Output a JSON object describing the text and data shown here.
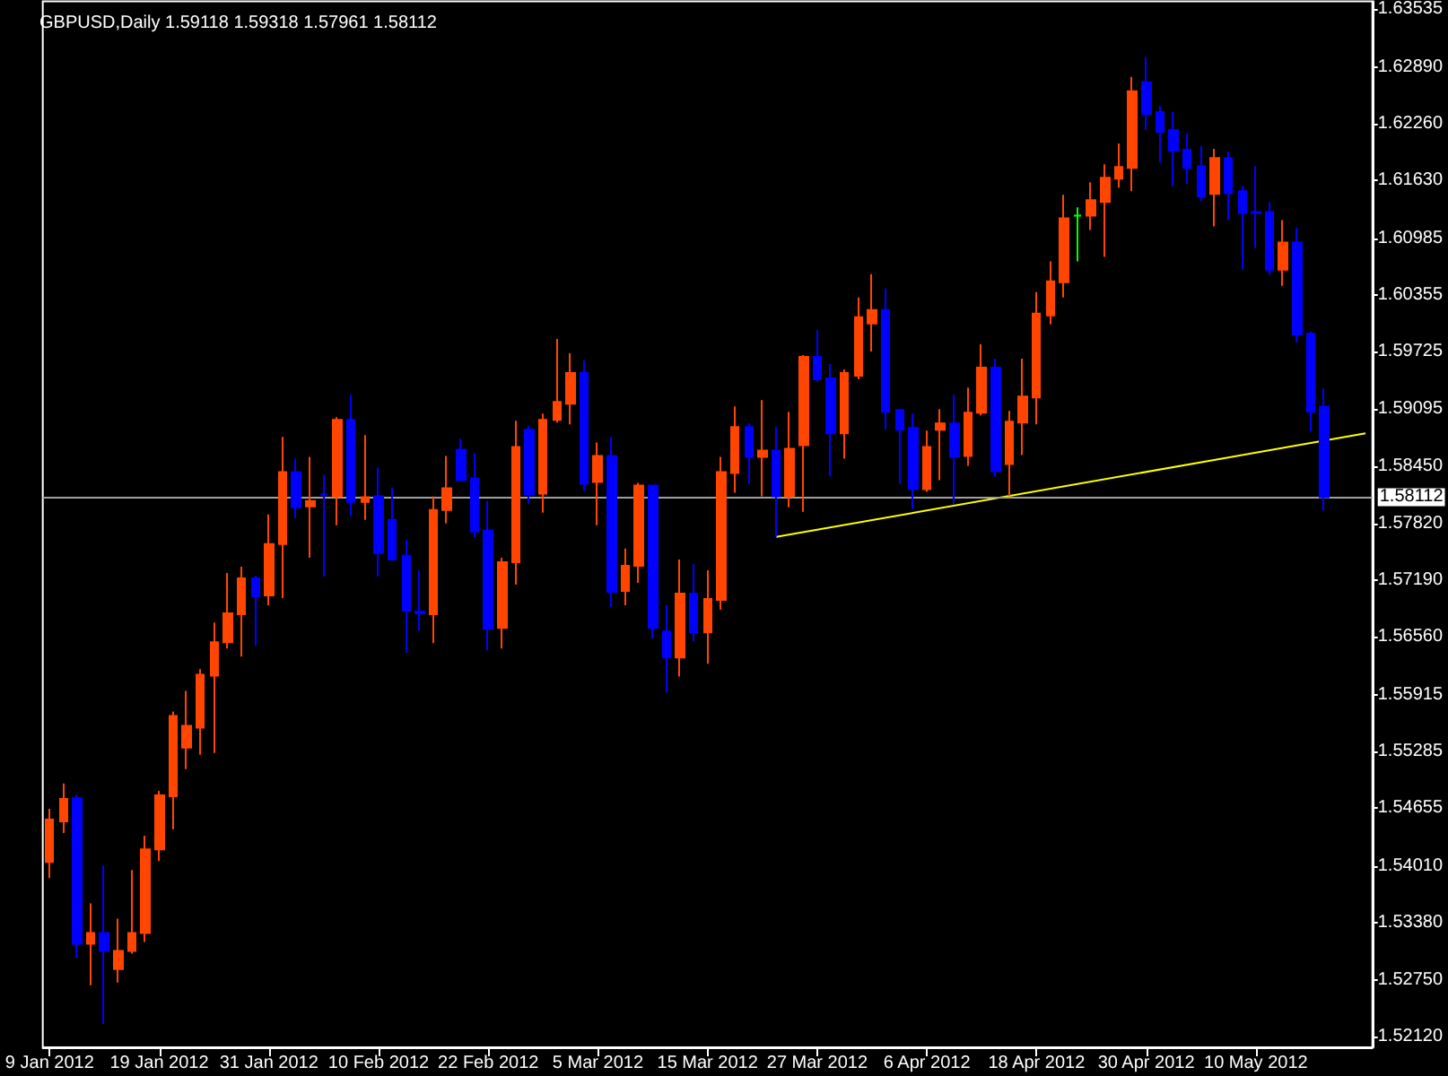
{
  "chart_data": {
    "type": "candlestick",
    "title": "GBPUSD,Daily 1.59118 1.59318 1.57961 1.58112",
    "categories": [
      "9 Jan 2012",
      null,
      null,
      null,
      null,
      null,
      null,
      null,
      "19 Jan 2012",
      null,
      null,
      null,
      null,
      null,
      null,
      null,
      "31 Jan 2012",
      null,
      null,
      null,
      null,
      null,
      null,
      null,
      "10 Feb 2012",
      null,
      null,
      null,
      null,
      null,
      null,
      null,
      "22 Feb 2012",
      null,
      null,
      null,
      null,
      null,
      null,
      null,
      "5 Mar 2012",
      null,
      null,
      null,
      null,
      null,
      null,
      null,
      "15 Mar 2012",
      null,
      null,
      null,
      null,
      null,
      null,
      null,
      "27 Mar 2012",
      null,
      null,
      null,
      null,
      null,
      null,
      null,
      "6 Apr 2012",
      null,
      null,
      null,
      null,
      null,
      null,
      null,
      "18 Apr 2012",
      null,
      null,
      null,
      null,
      null,
      null,
      null,
      "30 Apr 2012",
      null,
      null,
      null,
      null,
      null,
      null,
      null,
      "10 May 2012",
      null,
      null,
      null,
      null,
      null,
      null,
      null,
      null
    ],
    "ohlc": [
      [
        1.5406,
        1.5465,
        1.5388,
        1.5453
      ],
      [
        1.5451,
        1.5493,
        1.5438,
        1.5476
      ],
      [
        1.5477,
        1.5481,
        1.5299,
        1.5315
      ],
      [
        1.5315,
        1.536,
        1.5269,
        1.5327
      ],
      [
        1.5327,
        1.5402,
        1.5226,
        1.5307
      ],
      [
        1.5287,
        1.5343,
        1.5272,
        1.5307
      ],
      [
        1.5307,
        1.5397,
        1.5304,
        1.5327
      ],
      [
        1.5327,
        1.5435,
        1.5317,
        1.542
      ],
      [
        1.542,
        1.5485,
        1.5407,
        1.548
      ],
      [
        1.5479,
        1.5573,
        1.5442,
        1.5568
      ],
      [
        1.5533,
        1.5596,
        1.5509,
        1.5557
      ],
      [
        1.5555,
        1.562,
        1.5525,
        1.5614
      ],
      [
        1.5613,
        1.5672,
        1.5527,
        1.565
      ],
      [
        1.565,
        1.5727,
        1.5643,
        1.5682
      ],
      [
        1.5681,
        1.5734,
        1.5634,
        1.5721
      ],
      [
        1.5721,
        1.5724,
        1.5646,
        1.5701
      ],
      [
        1.5702,
        1.5792,
        1.5691,
        1.5759
      ],
      [
        1.5759,
        1.5878,
        1.5699,
        1.5839
      ],
      [
        1.5839,
        1.5854,
        1.5788,
        1.58
      ],
      [
        1.5801,
        1.5856,
        1.5744,
        1.5807
      ],
      [
        1.5814,
        1.5836,
        1.5723,
        1.5814
      ],
      [
        1.5812,
        1.59,
        1.578,
        1.5897
      ],
      [
        1.5897,
        1.5925,
        1.579,
        1.5806
      ],
      [
        1.5806,
        1.588,
        1.5786,
        1.5811
      ],
      [
        1.5812,
        1.5844,
        1.5723,
        1.5749
      ],
      [
        1.5786,
        1.5822,
        1.5741,
        1.5742
      ],
      [
        1.5746,
        1.5764,
        1.5638,
        1.5685
      ],
      [
        1.5684,
        1.573,
        1.5663,
        1.5682
      ],
      [
        1.5681,
        1.5812,
        1.5649,
        1.5797
      ],
      [
        1.5797,
        1.5857,
        1.5782,
        1.5821
      ],
      [
        1.5864,
        1.5876,
        1.583,
        1.583
      ],
      [
        1.5832,
        1.586,
        1.5767,
        1.5773
      ],
      [
        1.5774,
        1.5807,
        1.5641,
        1.5665
      ],
      [
        1.5666,
        1.5744,
        1.5643,
        1.5739
      ],
      [
        1.5739,
        1.5896,
        1.5714,
        1.5867
      ],
      [
        1.5886,
        1.589,
        1.5804,
        1.5814
      ],
      [
        1.5815,
        1.5904,
        1.5794,
        1.5897
      ],
      [
        1.5897,
        1.5987,
        1.5894,
        1.5917
      ],
      [
        1.5915,
        1.5971,
        1.5892,
        1.5949
      ],
      [
        1.5949,
        1.5963,
        1.5818,
        1.5826
      ],
      [
        1.5828,
        1.5872,
        1.578,
        1.5857
      ],
      [
        1.5857,
        1.5878,
        1.5689,
        1.5706
      ],
      [
        1.5707,
        1.5754,
        1.5691,
        1.5735
      ],
      [
        1.5735,
        1.5827,
        1.5716,
        1.5824
      ],
      [
        1.5824,
        1.5824,
        1.5654,
        1.5666
      ],
      [
        1.5662,
        1.5691,
        1.5594,
        1.5633
      ],
      [
        1.5633,
        1.5742,
        1.5612,
        1.5704
      ],
      [
        1.5704,
        1.5737,
        1.5651,
        1.5661
      ],
      [
        1.5661,
        1.573,
        1.5626,
        1.5698
      ],
      [
        1.5697,
        1.5856,
        1.5686,
        1.5839
      ],
      [
        1.5838,
        1.5912,
        1.5816,
        1.5889
      ],
      [
        1.5889,
        1.5893,
        1.5826,
        1.5856
      ],
      [
        1.5856,
        1.5919,
        1.5812,
        1.5863
      ],
      [
        1.5863,
        1.5889,
        1.5767,
        1.5812
      ],
      [
        1.5812,
        1.5906,
        1.58,
        1.5865
      ],
      [
        1.5869,
        1.5969,
        1.5795,
        1.5967
      ],
      [
        1.5967,
        1.5997,
        1.5939,
        1.5942
      ],
      [
        1.5943,
        1.5959,
        1.5834,
        1.5882
      ],
      [
        1.5882,
        1.5953,
        1.5854,
        1.5949
      ],
      [
        1.5946,
        1.6033,
        1.5942,
        1.6011
      ],
      [
        1.6004,
        1.6059,
        1.5973,
        1.6019
      ],
      [
        1.6019,
        1.6043,
        1.5886,
        1.5906
      ],
      [
        1.5908,
        1.5909,
        1.5826,
        1.5886
      ],
      [
        1.5888,
        1.5904,
        1.5798,
        1.582
      ],
      [
        1.582,
        1.5885,
        1.5817,
        1.5867
      ],
      [
        1.5886,
        1.5909,
        1.583,
        1.5893
      ],
      [
        1.5893,
        1.5925,
        1.5804,
        1.5856
      ],
      [
        1.5857,
        1.5933,
        1.5846,
        1.5905
      ],
      [
        1.5905,
        1.5981,
        1.5902,
        1.5955
      ],
      [
        1.5955,
        1.5965,
        1.5834,
        1.584
      ],
      [
        1.5848,
        1.5907,
        1.5812,
        1.5895
      ],
      [
        1.5894,
        1.5965,
        1.5858,
        1.5923
      ],
      [
        1.5922,
        1.6039,
        1.5892,
        1.6015
      ],
      [
        1.6013,
        1.6073,
        1.6003,
        1.6051
      ],
      [
        1.605,
        1.6147,
        1.6033,
        1.6121
      ],
      [
        1.6124,
        1.6133,
        1.6073,
        1.6124
      ],
      [
        1.6124,
        1.6161,
        1.6108,
        1.6141
      ],
      [
        1.6139,
        1.6181,
        1.6078,
        1.6166
      ],
      [
        1.6165,
        1.6204,
        1.6155,
        1.6178
      ],
      [
        1.6177,
        1.6278,
        1.6151,
        1.6262
      ],
      [
        1.6272,
        1.63,
        1.6219,
        1.6237
      ],
      [
        1.6239,
        1.6246,
        1.6183,
        1.6217
      ],
      [
        1.6219,
        1.6239,
        1.6157,
        1.6196
      ],
      [
        1.6197,
        1.6215,
        1.6159,
        1.6177
      ],
      [
        1.6179,
        1.6201,
        1.614,
        1.6145
      ],
      [
        1.6148,
        1.6198,
        1.6112,
        1.6188
      ],
      [
        1.6188,
        1.6195,
        1.6119,
        1.6149
      ],
      [
        1.6151,
        1.6157,
        1.6064,
        1.6127
      ],
      [
        1.6128,
        1.6179,
        1.6088,
        1.6127
      ],
      [
        1.6128,
        1.6139,
        1.6058,
        1.6064
      ],
      [
        1.6064,
        1.6119,
        1.6046,
        1.6094
      ],
      [
        1.6094,
        1.6111,
        1.5983,
        1.5992
      ],
      [
        1.5993,
        1.5995,
        1.5884,
        1.5906
      ],
      [
        1.59118,
        1.59318,
        1.57961,
        1.58112
      ],
      null,
      null,
      null
    ],
    "colors": [
      "#ff4500",
      "#ff4500",
      "#0000ff",
      "#ff4500",
      "#0000ff",
      "#ff4500",
      "#ff4500",
      "#ff4500",
      "#ff4500",
      "#ff4500",
      "#ff4500",
      "#ff4500",
      "#ff4500",
      "#ff4500",
      "#ff4500",
      "#0000ff",
      "#ff4500",
      "#ff4500",
      "#0000ff",
      "#ff4500",
      "#0000ff",
      "#ff4500",
      "#0000ff",
      "#ff4500",
      "#0000ff",
      "#0000ff",
      "#0000ff",
      "#0000ff",
      "#ff4500",
      "#ff4500",
      "#0000ff",
      "#0000ff",
      "#0000ff",
      "#ff4500",
      "#ff4500",
      "#0000ff",
      "#ff4500",
      "#ff4500",
      "#ff4500",
      "#0000ff",
      "#ff4500",
      "#0000ff",
      "#ff4500",
      "#ff4500",
      "#0000ff",
      "#0000ff",
      "#ff4500",
      "#0000ff",
      "#ff4500",
      "#ff4500",
      "#ff4500",
      "#0000ff",
      "#ff4500",
      "#0000ff",
      "#ff4500",
      "#ff4500",
      "#0000ff",
      "#0000ff",
      "#ff4500",
      "#ff4500",
      "#ff4500",
      "#0000ff",
      "#0000ff",
      "#0000ff",
      "#ff4500",
      "#ff4500",
      "#0000ff",
      "#ff4500",
      "#ff4500",
      "#0000ff",
      "#ff4500",
      "#ff4500",
      "#ff4500",
      "#ff4500",
      "#ff4500",
      "#00ff00",
      "#ff4500",
      "#ff4500",
      "#ff4500",
      "#ff4500",
      "#0000ff",
      "#0000ff",
      "#0000ff",
      "#0000ff",
      "#0000ff",
      "#ff4500",
      "#0000ff",
      "#0000ff",
      "#0000ff",
      "#0000ff",
      "#ff4500",
      "#0000ff",
      "#0000ff",
      "#0000ff",
      null,
      null,
      null
    ],
    "series": [
      {
        "type": "line",
        "color": "#ffff00",
        "marker": "none",
        "values": [
          null,
          null,
          null,
          null,
          null,
          null,
          null,
          null,
          null,
          null,
          null,
          null,
          null,
          null,
          null,
          null,
          null,
          null,
          null,
          null,
          null,
          null,
          null,
          null,
          null,
          null,
          null,
          null,
          null,
          null,
          null,
          null,
          null,
          null,
          null,
          null,
          null,
          null,
          null,
          null,
          null,
          null,
          null,
          null,
          null,
          null,
          null,
          null,
          null,
          null,
          null,
          null,
          null,
          1.5767,
          null,
          null,
          null,
          null,
          null,
          null,
          null,
          null,
          null,
          null,
          null,
          null,
          null,
          null,
          null,
          null,
          null,
          null,
          null,
          null,
          null,
          null,
          null,
          null,
          null,
          null,
          null,
          null,
          null,
          null,
          null,
          null,
          null,
          null,
          null,
          null,
          null,
          null,
          null,
          null,
          null,
          null,
          1.5882
        ]
      }
    ],
    "ylim": [
      1.52,
      1.6362
    ],
    "yticks": [
      1.63535,
      {
        "value": 1.6289,
        "label": "1.62890"
      },
      {
        "value": 1.6226,
        "label": "1.62260"
      },
      {
        "value": 1.6163,
        "label": "1.61630"
      },
      1.60985,
      1.60355,
      1.59725,
      1.59095,
      {
        "value": 1.5845,
        "label": "1.58450"
      },
      {
        "value": 1.5782,
        "label": "1.57820"
      },
      {
        "value": 1.5719,
        "label": "1.57190"
      },
      {
        "value": 1.5656,
        "label": "1.56560"
      },
      1.55915,
      1.55285,
      1.54655,
      {
        "value": 1.5401,
        "label": "1.54010"
      },
      {
        "value": 1.5338,
        "label": "1.53380"
      },
      {
        "value": 1.5275,
        "label": "1.52750"
      },
      {
        "value": 1.5212,
        "label": "1.52120"
      }
    ],
    "ref_lines": [
      {
        "axis": "y",
        "value": 1.58112,
        "label": "1.58112",
        "color": "#a0a0a0"
      }
    ],
    "grid": false
  }
}
